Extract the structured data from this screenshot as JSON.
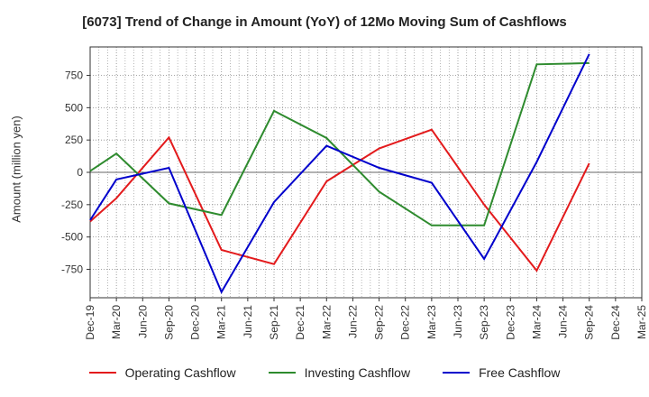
{
  "chart_data": {
    "type": "line",
    "title": "[6073]  Trend of Change in Amount (YoY) of 12Mo Moving Sum of Cashflows",
    "ylabel": "Amount (million yen)",
    "xlabel": "",
    "ylim": [
      -970,
      970
    ],
    "yticks": [
      -750,
      -500,
      -250,
      0,
      250,
      500,
      750
    ],
    "categories": [
      "Dec-19",
      "Mar-20",
      "Jun-20",
      "Sep-20",
      "Dec-20",
      "Mar-21",
      "Jun-21",
      "Sep-21",
      "Dec-21",
      "Mar-22",
      "Jun-22",
      "Sep-22",
      "Dec-22",
      "Mar-23",
      "Jun-23",
      "Sep-23",
      "Dec-23",
      "Mar-24",
      "Jun-24",
      "Sep-24",
      "Dec-24",
      "Mar-25"
    ],
    "series": [
      {
        "name": "Operating Cashflow",
        "color": "#e31a1c",
        "values": [
          -380,
          -200,
          null,
          270,
          null,
          -600,
          null,
          -710,
          null,
          -70,
          null,
          185,
          null,
          330,
          null,
          -250,
          null,
          -760,
          null,
          70,
          null,
          null
        ]
      },
      {
        "name": "Investing Cashflow",
        "color": "#2e8b2e",
        "values": [
          10,
          145,
          null,
          -240,
          null,
          -330,
          null,
          475,
          null,
          265,
          null,
          -150,
          null,
          -410,
          null,
          -410,
          null,
          835,
          null,
          845,
          null,
          null
        ]
      },
      {
        "name": "Free Cashflow",
        "color": "#0000cc",
        "values": [
          -370,
          -55,
          null,
          35,
          null,
          -925,
          null,
          -230,
          null,
          205,
          null,
          35,
          null,
          -80,
          null,
          -670,
          null,
          80,
          null,
          915,
          null,
          null
        ]
      }
    ],
    "grid": true,
    "legend": "bottom"
  }
}
